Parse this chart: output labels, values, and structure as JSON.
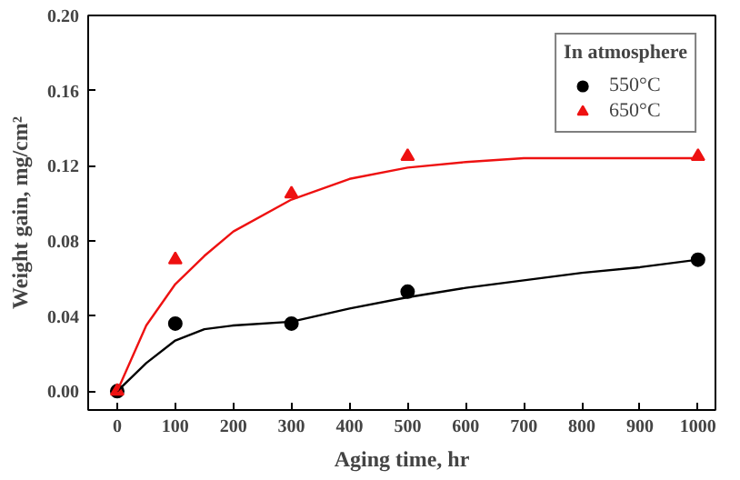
{
  "chart_data": {
    "type": "scatter",
    "xlabel": "Aging time, hr",
    "ylabel": "Weight gain, mg/cm²",
    "legend_title": "In atmosphere",
    "xlim": [
      -50,
      1030
    ],
    "xticks": [
      0,
      100,
      200,
      300,
      400,
      500,
      600,
      700,
      800,
      900,
      1000
    ],
    "ylim": [
      -0.01,
      0.2
    ],
    "yticks": [
      {
        "value": 0,
        "label": "0.00"
      },
      {
        "value": 0.04,
        "label": "0.04"
      },
      {
        "value": 0.08,
        "label": "0.08"
      },
      {
        "value": 0.12,
        "label": "0.12"
      },
      {
        "value": 0.16,
        "label": "0.16"
      },
      {
        "value": 0.2,
        "label": "0.20"
      }
    ],
    "grid": false,
    "legend": "top right",
    "series": [
      {
        "name": "550°C",
        "color": "#000000",
        "marker": "circle",
        "x": [
          0,
          100,
          300,
          500,
          1000
        ],
        "values": [
          0,
          0.036,
          0.036,
          0.053,
          0.07
        ]
      },
      {
        "name": "650°C",
        "color": "#ee1111",
        "marker": "triangle",
        "x": [
          0,
          100,
          300,
          500,
          1000
        ],
        "values": [
          0,
          0.07,
          0.105,
          0.125,
          0.125
        ]
      },
      {
        "type": "line",
        "color": "#000000",
        "x": [
          0,
          50,
          100,
          150,
          200,
          300,
          400,
          500,
          600,
          700,
          800,
          900,
          1000
        ],
        "values": [
          0,
          0.015,
          0.027,
          0.033,
          0.035,
          0.037,
          0.044,
          0.05,
          0.055,
          0.059,
          0.063,
          0.066,
          0.07
        ]
      },
      {
        "type": "line",
        "color": "#ee1111",
        "x": [
          0,
          50,
          100,
          150,
          200,
          300,
          400,
          500,
          600,
          700,
          800,
          1000
        ],
        "values": [
          0,
          0.035,
          0.057,
          0.072,
          0.085,
          0.102,
          0.113,
          0.119,
          0.122,
          0.124,
          0.124,
          0.124
        ]
      }
    ]
  }
}
